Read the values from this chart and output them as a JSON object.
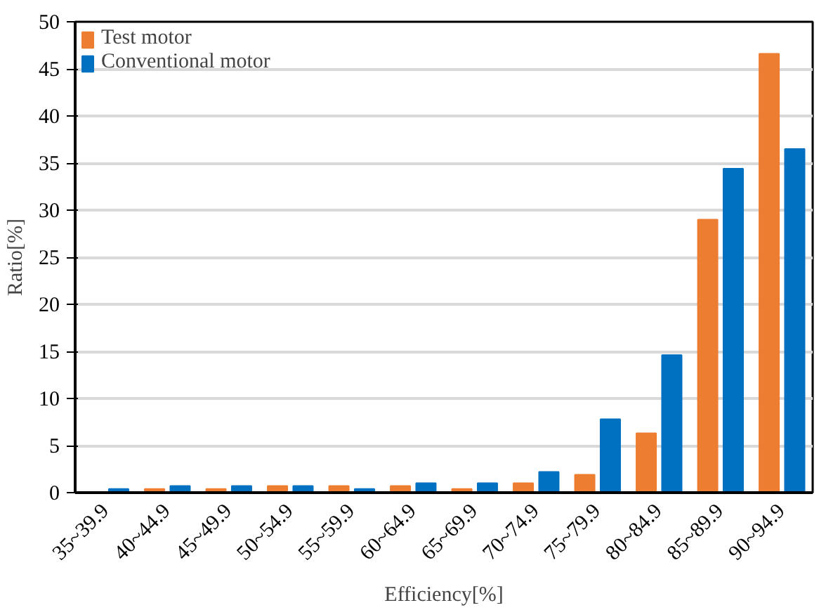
{
  "chart_data": {
    "type": "bar",
    "xlabel": "Efficiency[%]",
    "ylabel": "Ratio[%]",
    "categories": [
      "35~39.9",
      "40~44.9",
      "45~49.9",
      "50~54.9",
      "55~59.9",
      "60~64.9",
      "65~69.9",
      "70~74.9",
      "75~79.9",
      "80~84.9",
      "85~89.9",
      "90~94.9"
    ],
    "series": [
      {
        "name": "Test motor",
        "color": "#ed7d31",
        "values": [
          0,
          0.4,
          0.4,
          0.7,
          0.7,
          0.7,
          0.4,
          1.0,
          1.9,
          6.3,
          29.0,
          46.6
        ]
      },
      {
        "name": "Conventional motor",
        "color": "#0070c0",
        "values": [
          0.4,
          0.7,
          0.7,
          0.7,
          0.4,
          1.0,
          1.0,
          2.2,
          7.8,
          14.6,
          34.4,
          36.5
        ]
      }
    ],
    "ylim": [
      0,
      50
    ],
    "yticks": [
      0,
      5,
      10,
      15,
      20,
      25,
      30,
      35,
      40,
      45,
      50
    ],
    "grid": "y",
    "legend": "top left"
  }
}
